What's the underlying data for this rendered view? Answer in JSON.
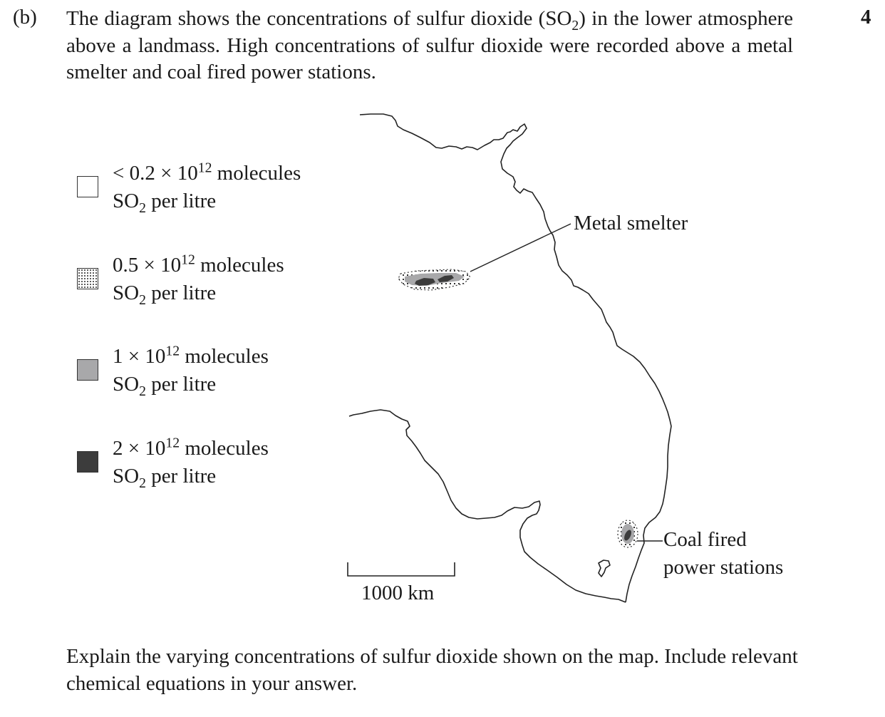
{
  "question": {
    "part_label": "(b)",
    "marks": "4",
    "intro": {
      "text_1": "The diagram shows the concentrations of sulfur dioxide (SO",
      "sub": "2",
      "text_2": ") in the lower atmosphere above a landmass. High concentrations of sulfur dioxide were recorded above a metal smelter and coal fired power stations."
    },
    "prompt": "Explain the varying concentrations of sulfur dioxide shown on the map. Include relevant chemical equations in your answer."
  },
  "legend": [
    {
      "lead": "< 0.2 × 10",
      "exp": "12",
      "unit": " molecules",
      "so": "SO",
      "sub": "2",
      "tail": " per litre",
      "fill": "#ffffff"
    },
    {
      "lead": "0.5 × 10",
      "exp": "12",
      "unit": " molecules",
      "so": "SO",
      "sub": "2",
      "tail": " per litre",
      "fill": "dotted"
    },
    {
      "lead": "1 × 10",
      "exp": "12",
      "unit": " molecules",
      "so": "SO",
      "sub": "2",
      "tail": " per litre",
      "fill": "#a8a8aa"
    },
    {
      "lead": "2 × 10",
      "exp": "12",
      "unit": " molecules",
      "so": "SO",
      "sub": "2",
      "tail": " per litre",
      "fill": "#3c3c3c"
    }
  ],
  "map": {
    "label_smelter": "Metal smelter",
    "label_power_1": "Coal fired",
    "label_power_2": "power stations",
    "scale_label": "1000 km"
  }
}
